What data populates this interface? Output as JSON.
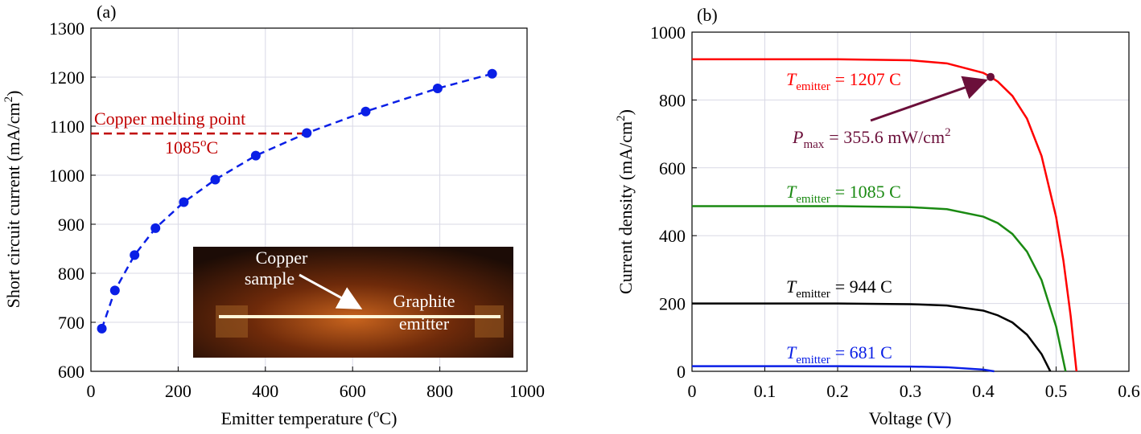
{
  "chart_data": [
    {
      "type": "scatter",
      "title": "(a)",
      "x_label": [
        "Emitter temperature (",
        "o",
        "C)"
      ],
      "y_label": [
        "Short circuit current (mA/cm",
        "2",
        ")"
      ],
      "x": [
        25,
        55,
        100,
        148,
        213,
        285,
        378,
        495,
        630,
        795,
        920
      ],
      "values": [
        687,
        765,
        837,
        892,
        945,
        991,
        1040,
        1086,
        1130,
        1177,
        1207
      ],
      "color": "#0a1fe6",
      "line_style": "dashed",
      "xlim": [
        0,
        1000
      ],
      "xticks": [
        0,
        200,
        400,
        600,
        800,
        1000
      ],
      "ylim": [
        600,
        1300
      ],
      "yticks": [
        600,
        700,
        800,
        900,
        1000,
        1100,
        1200,
        1300
      ],
      "grid": true,
      "reference_line": {
        "y": 1085,
        "x": [
          0,
          495
        ],
        "color": "#c00000",
        "label": "Copper melting point",
        "value_label": [
          "1085",
          "o",
          "C"
        ]
      },
      "inset": {
        "labels": [
          [
            "Copper",
            "sample"
          ],
          [
            "Graphite",
            "emitter"
          ]
        ]
      }
    },
    {
      "type": "line",
      "title": "(b)",
      "x_label": "Voltage (V)",
      "y_label": [
        "Current density (mA/cm",
        "2",
        ")"
      ],
      "xlim": [
        0,
        0.6
      ],
      "xticks": [
        0,
        0.1,
        0.2,
        0.3,
        0.4,
        0.5,
        0.6
      ],
      "ylim": [
        0,
        1000
      ],
      "yticks": [
        0,
        200,
        400,
        600,
        800,
        1000
      ],
      "grid": true,
      "series": [
        {
          "label": [
            "T",
            "emitter",
            "= 1207 C"
          ],
          "color": "#ff0000",
          "x": [
            0,
            0.1,
            0.2,
            0.3,
            0.35,
            0.4,
            0.41,
            0.42,
            0.44,
            0.46,
            0.48,
            0.5,
            0.51,
            0.52,
            0.528
          ],
          "values": [
            920,
            920,
            920,
            917,
            908,
            880,
            868,
            854,
            812,
            745,
            635,
            455,
            327,
            163,
            0
          ]
        },
        {
          "label": [
            "T",
            "emitter",
            "= 1085 C"
          ],
          "color": "#1a8a12",
          "x": [
            0,
            0.1,
            0.2,
            0.3,
            0.35,
            0.4,
            0.42,
            0.44,
            0.46,
            0.48,
            0.5,
            0.513
          ],
          "values": [
            487,
            487,
            487,
            484,
            478,
            456,
            437,
            405,
            353,
            269,
            132,
            0
          ]
        },
        {
          "label": [
            "T",
            "emitter",
            "= 944 C"
          ],
          "color": "#000000",
          "x": [
            0,
            0.1,
            0.2,
            0.3,
            0.35,
            0.4,
            0.42,
            0.44,
            0.46,
            0.48,
            0.492
          ],
          "values": [
            200,
            200,
            200,
            198,
            194,
            179,
            165,
            144,
            108,
            51,
            0
          ]
        },
        {
          "label": [
            "T",
            "emitter",
            "= 681 C"
          ],
          "color": "#0a1fe6",
          "x": [
            0,
            0.1,
            0.2,
            0.3,
            0.35,
            0.4,
            0.415
          ],
          "values": [
            15,
            15,
            15,
            14,
            12,
            5,
            0
          ]
        }
      ],
      "max_power_point": {
        "x": 0.41,
        "y": 868,
        "color": "#6b0f3a",
        "label": [
          "P",
          "max",
          "= 355.6 mW/cm",
          "2"
        ]
      }
    }
  ]
}
